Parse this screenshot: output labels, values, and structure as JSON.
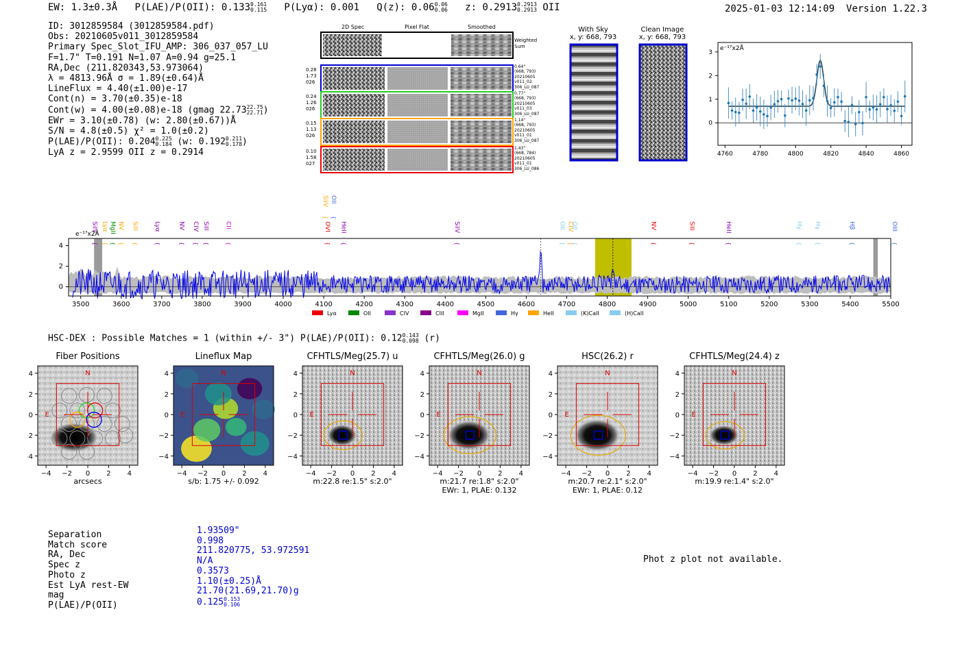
{
  "header": {
    "ew": "EW: 1.3±0.3Å",
    "plae_label": "P(LAE)/P(OII): 0.133",
    "plae_hi": "0.161",
    "plae_lo": "0.115",
    "plya": "P(Lyα): 0.001",
    "qz": "Q(z): 0.06",
    "qz_hi": "0.06",
    "qz_lo": "0.06",
    "z": "z: 0.2913",
    "z_hi": "0.2913",
    "z_lo": "0.2913",
    "z_line": "OII",
    "timestamp": "2025-01-03 12:14:09",
    "version": "Version 1.22.3"
  },
  "info": {
    "id": "ID: 3012859584 (3012859584.pdf)",
    "obs": "Obs: 20210605v011_3012859584",
    "primary": "Primary Spec_Slot_IFU_AMP: 306_037_057_LU",
    "fwhm": "F=1.7\"  T=0.191  N=1.07  A=0.94  g=25.1",
    "radec": "RA,Dec (211.820343,53.973064)",
    "lambda": "λ = 4813.96Å  σ = 1.89(±0.64)Å",
    "lineflux": "LineFlux = 4.40(±1.00)e-17",
    "contn": "Cont(n) = 3.70(±0.35)e-18",
    "contw": "Cont(w) = 4.00(±0.08)e-18 (gmag 22.73",
    "gmag_hi": "22.75",
    "gmag_lo": "22.71",
    "ewr": "EWr = 3.10(±0.78) (w: 2.80(±0.67))Å",
    "sn": "S/N = 4.8(±0.5)  χ² = 1.0(±0.2)",
    "plae": "P(LAE)/P(OII): 0.204",
    "plae_hi": "0.225",
    "plae_lo": "0.184",
    "plae_w": "(w: 0.192",
    "plae_w_hi": "0.211",
    "plae_w_lo": "0.178",
    "lyaz": "LyA z = 2.9599  OII z = 0.2914"
  },
  "cutouts": {
    "col_titles": [
      "2D Spec",
      "Pixel Flat",
      "Smoothed"
    ],
    "weighted_sum": "Weighted Sum",
    "rows": [
      {
        "left": [
          "0.28",
          "1.73",
          "026"
        ],
        "right": [
          "0.64\"",
          "(668, 793)",
          "20210605",
          "v011_02",
          "306_LU_087"
        ],
        "color": "#0000cc"
      },
      {
        "left": [
          "0.24",
          "1.26",
          "026"
        ],
        "right": [
          "0.77\"",
          "(668, 793)",
          "20210605",
          "v011_03",
          "306_LU_087"
        ],
        "color": "#22cc22"
      },
      {
        "left": [
          "0.15",
          "1.13",
          "026"
        ],
        "right": [
          "1.14\"",
          "(668, 793)",
          "20210605",
          "v011_01",
          "306_LU_087"
        ],
        "color": "#ffa500"
      },
      {
        "left": [
          "0.10",
          "1.58",
          "027"
        ],
        "right": [
          "1.43\"",
          "(668, 784)",
          "20210605",
          "v011_01",
          "306_LU_086"
        ],
        "color": "#ee0000"
      }
    ]
  },
  "sky": {
    "with_sky": "With Sky",
    "with_sky_xy": "x, y: 668, 793",
    "clean": "Clean Image",
    "clean_xy": "x, y: 668, 793"
  },
  "zoom": {
    "label": "e⁻¹⁷x2Å",
    "xticks": [
      "4760",
      "4780",
      "4800",
      "4820",
      "4840",
      "4860"
    ],
    "yticks": [
      "3",
      "2",
      "1",
      "0"
    ]
  },
  "spectrum": {
    "label": "e⁻¹⁷x2Å",
    "xticks": [
      "3500",
      "3600",
      "3700",
      "3800",
      "3900",
      "4000",
      "4100",
      "4200",
      "4300",
      "4400",
      "4500",
      "4600",
      "4700",
      "4800",
      "4900",
      "5000",
      "5100",
      "5200",
      "5300",
      "5400",
      "5500"
    ],
    "yticks": [
      "4",
      "2",
      "0"
    ],
    "lines": [
      {
        "name": "SiIV",
        "color": "#8800aa"
      },
      {
        "name": "Lyα",
        "color": "#ffa500"
      },
      {
        "name": "MgII",
        "color": "#008800"
      },
      {
        "name": "NV",
        "color": "#ffa500"
      },
      {
        "name": "SiII",
        "color": "#ffa500"
      },
      {
        "name": "Lyα",
        "color": "#8800aa"
      },
      {
        "name": "NV",
        "color": "#8800aa"
      },
      {
        "name": "CIV",
        "color": "#8800aa"
      },
      {
        "name": "SiII",
        "color": "#8800aa"
      },
      {
        "name": "CII",
        "color": "#cc00cc"
      },
      {
        "name": "SiIV",
        "color": "#ffa500"
      },
      {
        "name": "OII",
        "color": "#4466dd"
      },
      {
        "name": "OVI",
        "color": "#ee0000"
      },
      {
        "name": "HeII",
        "color": "#8800aa"
      },
      {
        "name": "SiIV",
        "color": "#8800aa"
      },
      {
        "name": "OII",
        "color": "#88ccee"
      },
      {
        "name": "CIV",
        "color": "#ffa500"
      },
      {
        "name": "OII",
        "color": "#88ccee"
      },
      {
        "name": "NV",
        "color": "#ee0000"
      },
      {
        "name": "SiII",
        "color": "#ee0000"
      },
      {
        "name": "HeII",
        "color": "#8800aa"
      },
      {
        "name": "Hγ",
        "color": "#88ccee"
      },
      {
        "name": "Hγ",
        "color": "#88ccee"
      },
      {
        "name": "Hβ",
        "color": "#4466dd"
      },
      {
        "name": "OIII",
        "color": "#4466dd"
      }
    ],
    "legend": [
      {
        "name": "Lyα",
        "color": "#ee0000"
      },
      {
        "name": "OII",
        "color": "#008800"
      },
      {
        "name": "CIV",
        "color": "#8833cc"
      },
      {
        "name": "CIII",
        "color": "#880088"
      },
      {
        "name": "MgII",
        "color": "#ff00ff"
      },
      {
        "name": "Hγ",
        "color": "#4466dd"
      },
      {
        "name": "HeII",
        "color": "#ffa500"
      },
      {
        "name": "(K)CaII",
        "color": "#88ccee"
      },
      {
        "name": "(H)CaII",
        "color": "#88ccee"
      }
    ]
  },
  "hsc": {
    "line": "HSC-DEX : Possible Matches = 1 (within +/- 3\")  P(LAE)/P(OII): 0.12",
    "hi": "0.143",
    "lo": "0.098",
    "band": "(r)"
  },
  "panels": [
    {
      "title": "Fiber Positions",
      "cap1": "arcsecs",
      "cap2": ""
    },
    {
      "title": "Lineflux Map",
      "cap1": "s/b: 1.75 +/- 0.092",
      "cap2": ""
    },
    {
      "title": "CFHTLS/Meg(25.7) u",
      "cap1": "m:22.8  re:1.5\"  s:2.0\"",
      "cap2": ""
    },
    {
      "title": "CFHTLS/Meg(26.0) g",
      "cap1": "m:21.7  re:1.8\"  s:2.0\"",
      "cap2": "EWr: 1, PLAE: 0.132"
    },
    {
      "title": "HSC(26.2) r",
      "cap1": "m:20.7  re:2.1\"  s:2.0\"",
      "cap2": "EWr: 1, PLAE: 0.12"
    },
    {
      "title": "CFHTLS/Meg(24.4) z",
      "cap1": "m:19.9  re:1.4\"  s:2.0\"",
      "cap2": ""
    }
  ],
  "panel_axis": {
    "xticks": [
      "−4",
      "−2",
      "0",
      "2",
      "4"
    ],
    "yticks": [
      "4",
      "2",
      "0",
      "−2",
      "−4"
    ],
    "n": "N",
    "e": "E"
  },
  "match": {
    "labels": [
      "Separation",
      "Match score",
      "RA, Dec",
      "Spec z",
      "Photo z",
      "Est LyA rest-EW",
      "mag",
      "P(LAE)/P(OII)"
    ],
    "values": [
      "1.93509\"",
      "0.998",
      "211.820775, 53.972591",
      "N/A",
      "0.3573",
      "1.10(±0.25)Å",
      "21.70(21.69,21.70)g",
      "0.125"
    ],
    "plae_hi": "0.153",
    "plae_lo": "0.106"
  },
  "photz": "Phot z plot not available."
}
